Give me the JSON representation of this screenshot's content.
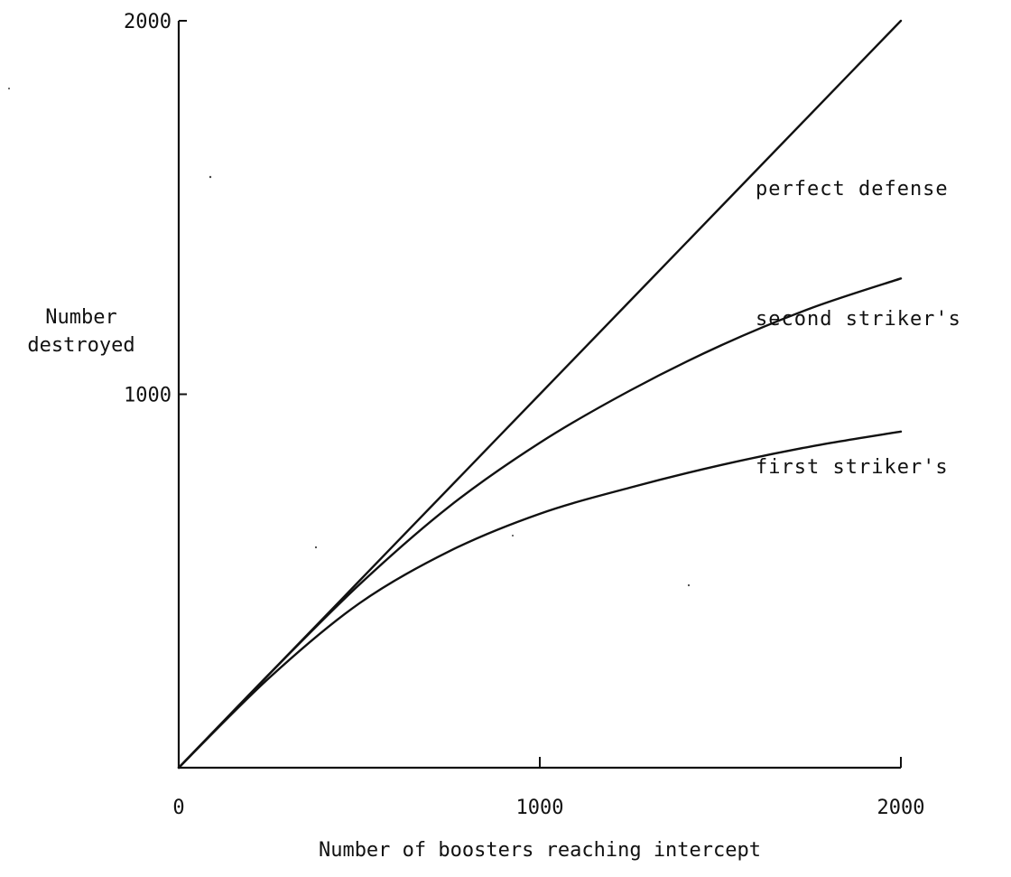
{
  "chart_data": {
    "type": "line",
    "title": "",
    "xlabel": "Number of boosters reaching intercept",
    "ylabel_lines": [
      "Number",
      "destroyed"
    ],
    "xlim": [
      0,
      2000
    ],
    "ylim": [
      0,
      2000
    ],
    "x_ticks": [
      0,
      1000,
      2000
    ],
    "x_tick_labels": [
      "0",
      "1000",
      "2000"
    ],
    "y_ticks": [
      1000,
      2000
    ],
    "y_tick_labels": [
      "1000",
      "2000"
    ],
    "grid": false,
    "legend": "none (curves labeled inline at right)",
    "series": [
      {
        "name": "perfect defense",
        "x": [
          0,
          250,
          500,
          750,
          1000,
          1250,
          1500,
          1750,
          2000
        ],
        "y": [
          0,
          250,
          500,
          750,
          1000,
          1250,
          1500,
          1750,
          2000
        ]
      },
      {
        "name": "second striker's",
        "x": [
          0,
          250,
          500,
          750,
          1000,
          1250,
          1500,
          1750,
          2000
        ],
        "y": [
          0,
          250,
          490,
          700,
          870,
          1010,
          1130,
          1230,
          1310
        ]
      },
      {
        "name": "first striker's",
        "x": [
          0,
          250,
          500,
          750,
          1000,
          1250,
          1500,
          1750,
          2000
        ],
        "y": [
          0,
          240,
          440,
          580,
          680,
          750,
          810,
          860,
          900
        ]
      }
    ]
  }
}
